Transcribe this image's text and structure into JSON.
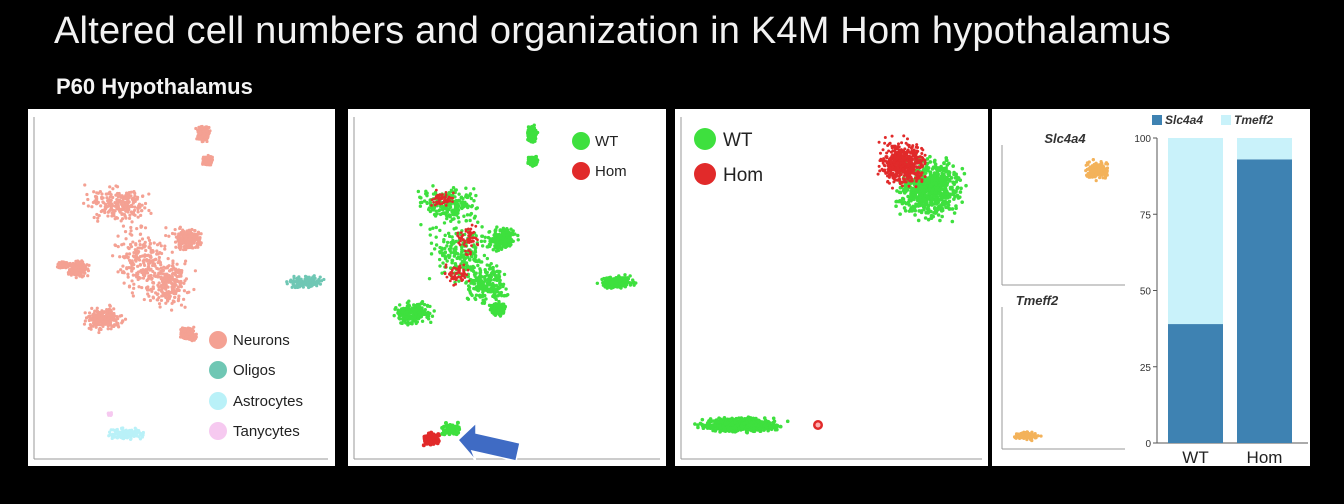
{
  "title": "Altered cell numbers and organization in K4M Hom hypothalamus",
  "subtitle": "P60 Hypothalamus",
  "panel1": {
    "legend": [
      {
        "label": "Neurons",
        "color": "#f4a193"
      },
      {
        "label": "Oligos",
        "color": "#6fc7b4"
      },
      {
        "label": "Astrocytes",
        "color": "#b9f1f8"
      },
      {
        "label": "Tanycytes",
        "color": "#f6c9f0"
      }
    ]
  },
  "panel2": {
    "legend": [
      {
        "label": "WT",
        "color": "#3ee03e"
      },
      {
        "label": "Hom",
        "color": "#e12a2a"
      }
    ],
    "arrow_color": "#3f6bc4"
  },
  "panel3": {
    "legend": [
      {
        "label": "WT",
        "color": "#3ee03e"
      },
      {
        "label": "Hom",
        "color": "#e12a2a"
      }
    ]
  },
  "panel4": {
    "plot_top_label": "Slc4a4",
    "plot_bottom_label": "Tmeff2",
    "cluster_color": "#f3b25a"
  },
  "chart_data": {
    "type": "bar",
    "stacked": true,
    "categories": [
      "WT",
      "Hom"
    ],
    "series": [
      {
        "name": "Slc4a4",
        "values": [
          39,
          93
        ],
        "color": "#3e82b2"
      },
      {
        "name": "Tmeff2",
        "values": [
          61,
          7
        ],
        "color": "#c9f2fa"
      }
    ],
    "ylim": [
      0,
      100
    ],
    "yticks": [
      0,
      25,
      50,
      75,
      100
    ],
    "legend_position": "top"
  }
}
